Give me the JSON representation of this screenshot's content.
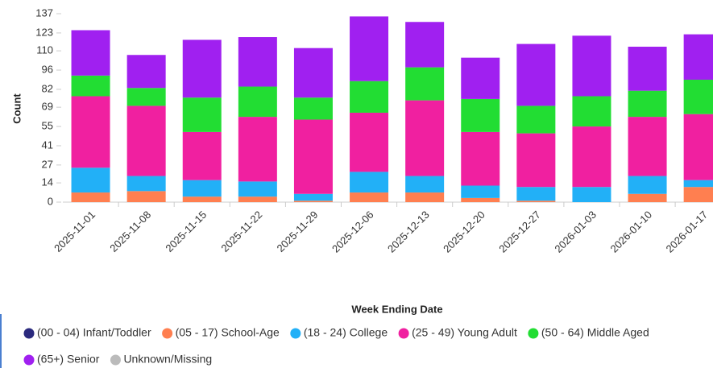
{
  "chart_data": {
    "type": "stacked_bar",
    "x_label": "Week Ending Date",
    "y_label": "Count",
    "categories": [
      "2025-11-01",
      "2025-11-08",
      "2025-11-15",
      "2025-11-22",
      "2025-11-29",
      "2025-12-06",
      "2025-12-13",
      "2025-12-20",
      "2025-12-27",
      "2026-01-03",
      "2026-01-10",
      "2026-01-17"
    ],
    "series": [
      {
        "name": "(00 - 04) Infant/Toddler",
        "color": "#2b2a7e",
        "values": [
          0,
          0,
          0,
          0,
          0,
          0,
          0,
          0,
          0,
          0,
          0,
          0
        ]
      },
      {
        "name": "(05 - 17) School-Age",
        "color": "#ff7f50",
        "values": [
          7,
          8,
          4,
          4,
          1,
          7,
          7,
          3,
          1,
          0,
          6,
          11
        ]
      },
      {
        "name": "(18 - 24) College",
        "color": "#22b0f7",
        "values": [
          18,
          11,
          12,
          11,
          5,
          15,
          12,
          9,
          10,
          11,
          13,
          5
        ]
      },
      {
        "name": "(25 - 49) Young Adult",
        "color": "#f020a0",
        "values": [
          52,
          51,
          35,
          47,
          54,
          43,
          55,
          39,
          39,
          44,
          43,
          48
        ]
      },
      {
        "name": "(50 - 64) Middle Aged",
        "color": "#22dd33",
        "values": [
          15,
          13,
          25,
          22,
          16,
          23,
          24,
          24,
          20,
          22,
          19,
          25
        ]
      },
      {
        "name": "(65+) Senior",
        "color": "#a020f0",
        "values": [
          33,
          24,
          42,
          36,
          36,
          47,
          33,
          30,
          45,
          44,
          32,
          33
        ]
      },
      {
        "name": "Unknown/Missing",
        "color": "#bbbbbb",
        "values": [
          0,
          0,
          0,
          0,
          0,
          0,
          0,
          0,
          0,
          0,
          0,
          0
        ]
      }
    ],
    "ylim": [
      0,
      137
    ],
    "yticks": [
      0,
      14,
      27,
      41,
      55,
      69,
      82,
      96,
      110,
      123,
      137
    ],
    "grid": false
  }
}
